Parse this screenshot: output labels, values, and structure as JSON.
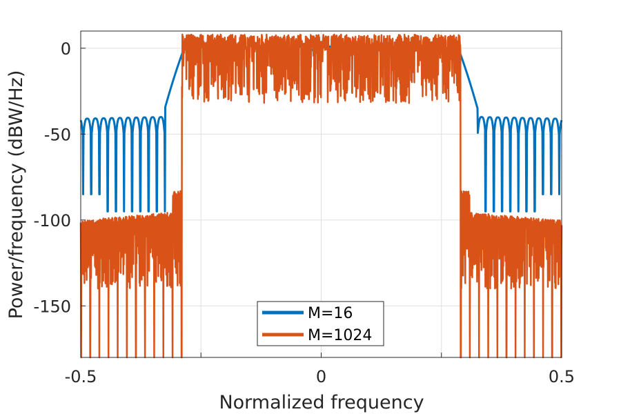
{
  "chart_data": {
    "type": "line",
    "title": "",
    "xlabel": "Normalized frequency",
    "ylabel": "Power/frequency (dBW/Hz)",
    "xlim": [
      -0.5,
      0.5
    ],
    "ylim": [
      -180,
      10
    ],
    "xticks": [
      -0.5,
      0,
      0.5
    ],
    "xtick_labels": [
      "-0.5",
      "0",
      "0.5"
    ],
    "yticks": [
      0,
      -50,
      -100,
      -150
    ],
    "ytick_labels": [
      "0",
      "-50",
      "-100",
      "-150"
    ],
    "grid": true,
    "legend_position": "bottom-center",
    "series": [
      {
        "name": "M=16",
        "color": "#0072bd",
        "passband_edge": 0.31,
        "passband_level": 0,
        "sidelobe_level": -40,
        "null_depth": -95
      },
      {
        "name": "M=1024",
        "color": "#d95319",
        "passband_edge": 0.29,
        "passband_level": 0,
        "passband_ripple_min": -30,
        "passband_ripple_max": 8,
        "stopband_level": -95,
        "stopband_floor": -140,
        "null_depth": -180
      }
    ]
  }
}
